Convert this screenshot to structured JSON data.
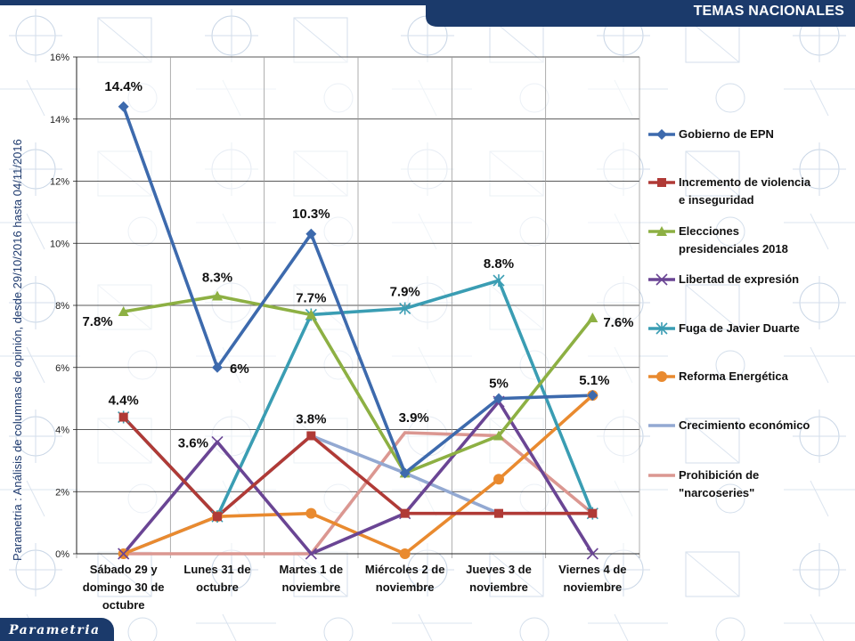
{
  "header": {
    "title": "TEMAS NACIONALES"
  },
  "side_note": "Parametria : Análisis de columnas de opinión, desde 29/10/2016 hasta  04/11/2016",
  "logo": {
    "text": "Parametria"
  },
  "colors": {
    "band": "#1b3a6b",
    "pattern": "#9fb4cf"
  },
  "chart_data": {
    "type": "line",
    "ylim": [
      0,
      16
    ],
    "yticks": [
      "0%",
      "2%",
      "4%",
      "6%",
      "8%",
      "10%",
      "12%",
      "14%",
      "16%"
    ],
    "categories": [
      [
        "Sábado 29 y",
        "domingo 30 de",
        "octubre"
      ],
      [
        "Lunes 31 de",
        "octubre"
      ],
      [
        "Martes 1 de",
        "noviembre"
      ],
      [
        "Miércoles 2 de",
        "noviembre"
      ],
      [
        "Jueves 3 de",
        "noviembre"
      ],
      [
        "Viernes 4 de",
        "noviembre"
      ]
    ],
    "series": [
      {
        "name": [
          "Gobierno de EPN"
        ],
        "color": "#3d6aad",
        "marker": "diamond",
        "values": [
          14.4,
          6,
          10.3,
          2.6,
          5,
          5.1
        ]
      },
      {
        "name": [
          "Incremento de violencia",
          "e inseguridad"
        ],
        "color": "#b03a36",
        "marker": "square",
        "values": [
          4.4,
          1.2,
          3.8,
          1.3,
          1.3,
          1.3
        ]
      },
      {
        "name": [
          "Elecciones",
          "presidenciales 2018"
        ],
        "color": "#8db043",
        "marker": "triangle",
        "values": [
          7.8,
          8.3,
          7.7,
          2.6,
          3.8,
          7.6
        ]
      },
      {
        "name": [
          "Libertad de expresión"
        ],
        "color": "#6a4594",
        "marker": "x",
        "values": [
          0,
          3.6,
          0,
          1.3,
          4.9,
          0
        ]
      },
      {
        "name": [
          "Fuga de Javier Duarte"
        ],
        "color": "#3a9db3",
        "marker": "asterisk",
        "values": [
          4.4,
          1.2,
          7.7,
          7.9,
          8.8,
          1.3
        ]
      },
      {
        "name": [
          "Reforma Energética"
        ],
        "color": "#e98a2f",
        "marker": "circle",
        "values": [
          0,
          1.2,
          1.3,
          0,
          2.4,
          5.1
        ]
      },
      {
        "name": [
          "Crecimiento económico"
        ],
        "color": "#93a9d2",
        "marker": "none",
        "values": [
          0,
          1.2,
          3.8,
          2.6,
          1.3,
          1.3
        ]
      },
      {
        "name": [
          "Prohibición de",
          "\"narcoseries\""
        ],
        "color": "#db9791",
        "marker": "none",
        "values": [
          0,
          0,
          0,
          3.9,
          3.8,
          1.3
        ]
      }
    ],
    "data_labels": [
      {
        "text": "14.4%",
        "series": 0,
        "point": 0
      },
      {
        "text": "6%",
        "series": 0,
        "point": 1
      },
      {
        "text": "10.3%",
        "series": 0,
        "point": 2
      },
      {
        "text": "5%",
        "series": 0,
        "point": 4
      },
      {
        "text": "5.1%",
        "series": 5,
        "point": 5
      },
      {
        "text": "7.8%",
        "series": 2,
        "point": 0
      },
      {
        "text": "8.3%",
        "series": 2,
        "point": 1
      },
      {
        "text": "7.6%",
        "series": 2,
        "point": 5
      },
      {
        "text": "7.7%",
        "series": 4,
        "point": 2
      },
      {
        "text": "7.9%",
        "series": 4,
        "point": 3
      },
      {
        "text": "8.8%",
        "series": 4,
        "point": 4
      },
      {
        "text": "4.4%",
        "series": 1,
        "point": 0
      },
      {
        "text": "3.6%",
        "series": 3,
        "point": 1
      },
      {
        "text": "3.8%",
        "series": 1,
        "point": 2
      },
      {
        "text": "3.9%",
        "series": 7,
        "point": 3
      }
    ],
    "grid": true,
    "legend": "right"
  }
}
